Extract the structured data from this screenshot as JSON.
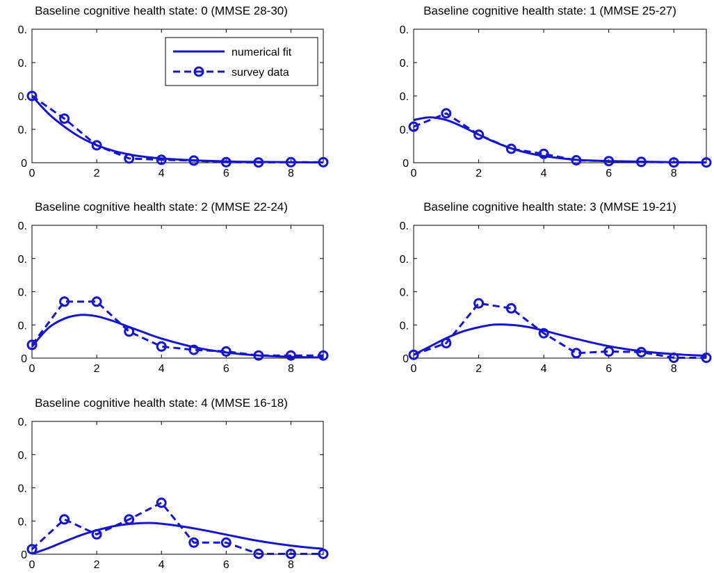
{
  "chart_data": [
    {
      "type": "line",
      "title": "Baseline cognitive health state: 0 (MMSE 28-30)",
      "xlim": [
        0,
        9
      ],
      "ylim": [
        0,
        0.5
      ],
      "xticks": [
        "0",
        "2",
        "4",
        "6",
        "8"
      ],
      "yticks": [
        "0",
        "0.",
        "0.",
        "0.",
        "0."
      ],
      "grid": false,
      "legend": {
        "location": "top-right",
        "entries": [
          "numerical fit",
          "survey data"
        ]
      },
      "series": [
        {
          "name": "numerical fit",
          "style": "solid",
          "x": [
            0,
            0.5,
            1,
            1.5,
            2,
            2.5,
            3,
            3.5,
            4,
            5,
            6,
            7,
            8,
            9
          ],
          "y": [
            0.25,
            0.185,
            0.135,
            0.095,
            0.066,
            0.045,
            0.031,
            0.022,
            0.016,
            0.009,
            0.005,
            0.003,
            0.002,
            0.001
          ]
        },
        {
          "name": "survey data",
          "style": "dashed-circle",
          "x": [
            0,
            1,
            2,
            3,
            4,
            5,
            6,
            7,
            8,
            9
          ],
          "y": [
            0.25,
            0.165,
            0.065,
            0.016,
            0.011,
            0.008,
            0.002,
            0.001,
            0.002,
            0.002
          ]
        }
      ]
    },
    {
      "type": "line",
      "title": "Baseline cognitive health state: 1 (MMSE 25-27)",
      "xlim": [
        0,
        9
      ],
      "ylim": [
        0,
        0.5
      ],
      "xticks": [
        "0",
        "2",
        "4",
        "6",
        "8"
      ],
      "yticks": [
        "0",
        "0.",
        "0.",
        "0.",
        "0."
      ],
      "grid": false,
      "series": [
        {
          "name": "numerical fit",
          "style": "solid",
          "x": [
            0,
            0.5,
            1,
            1.5,
            2,
            2.5,
            3,
            3.5,
            4,
            5,
            6,
            7,
            8,
            9
          ],
          "y": [
            0.16,
            0.17,
            0.16,
            0.135,
            0.105,
            0.077,
            0.054,
            0.037,
            0.025,
            0.011,
            0.006,
            0.004,
            0.002,
            0.001
          ]
        },
        {
          "name": "survey data",
          "style": "dashed-circle",
          "x": [
            0,
            1,
            2,
            3,
            4,
            5,
            6,
            7,
            8,
            9
          ],
          "y": [
            0.135,
            0.185,
            0.105,
            0.052,
            0.033,
            0.009,
            0.006,
            0.003,
            0.001,
            0.001
          ]
        }
      ]
    },
    {
      "type": "line",
      "title": "Baseline cognitive health state: 2 (MMSE 22-24)",
      "xlim": [
        0,
        9
      ],
      "ylim": [
        0,
        0.4
      ],
      "xticks": [
        "0",
        "2",
        "4",
        "6",
        "8"
      ],
      "yticks": [
        "0",
        "0.",
        "0.",
        "0.",
        "0."
      ],
      "grid": false,
      "series": [
        {
          "name": "numerical fit",
          "style": "solid",
          "x": [
            0,
            0.5,
            1,
            1.5,
            2,
            2.5,
            3,
            3.5,
            4,
            5,
            6,
            7,
            8,
            9
          ],
          "y": [
            0.035,
            0.09,
            0.119,
            0.13,
            0.126,
            0.112,
            0.094,
            0.076,
            0.059,
            0.033,
            0.017,
            0.008,
            0.004,
            0.002
          ]
        },
        {
          "name": "survey data",
          "style": "dashed-circle",
          "x": [
            0,
            1,
            2,
            3,
            4,
            5,
            6,
            7,
            8,
            9
          ],
          "y": [
            0.04,
            0.17,
            0.17,
            0.08,
            0.035,
            0.025,
            0.02,
            0.008,
            0.008,
            0.008
          ]
        }
      ]
    },
    {
      "type": "line",
      "title": "Baseline cognitive health state: 3 (MMSE 19-21)",
      "xlim": [
        0,
        9
      ],
      "ylim": [
        0,
        0.4
      ],
      "xticks": [
        "0",
        "2",
        "4",
        "6",
        "8"
      ],
      "yticks": [
        "0",
        "0.",
        "0.",
        "0.",
        "0."
      ],
      "grid": false,
      "series": [
        {
          "name": "numerical fit",
          "style": "solid",
          "x": [
            0,
            0.5,
            1,
            1.5,
            2,
            2.5,
            3,
            3.5,
            4,
            5,
            6,
            7,
            8,
            9
          ],
          "y": [
            0.01,
            0.035,
            0.06,
            0.08,
            0.093,
            0.101,
            0.1,
            0.094,
            0.083,
            0.058,
            0.036,
            0.021,
            0.012,
            0.007
          ]
        },
        {
          "name": "survey data",
          "style": "dashed-circle",
          "x": [
            0,
            1,
            2,
            3,
            4,
            5,
            6,
            7,
            8,
            9
          ],
          "y": [
            0.01,
            0.045,
            0.165,
            0.15,
            0.075,
            0.015,
            0.02,
            0.018,
            0.001,
            0.001
          ]
        }
      ]
    },
    {
      "type": "line",
      "title": "Baseline cognitive health state: 4 (MMSE 16-18)",
      "xlim": [
        0,
        9
      ],
      "ylim": [
        0,
        0.4
      ],
      "xticks": [
        "0",
        "2",
        "4",
        "6",
        "8"
      ],
      "yticks": [
        "0",
        "0.",
        "0.",
        "0.",
        "0."
      ],
      "grid": false,
      "series": [
        {
          "name": "numerical fit",
          "style": "solid",
          "x": [
            0,
            0.5,
            1,
            1.5,
            2,
            2.5,
            3,
            3.5,
            4,
            5,
            6,
            7,
            8,
            9
          ],
          "y": [
            0.001,
            0.018,
            0.038,
            0.057,
            0.072,
            0.084,
            0.091,
            0.094,
            0.092,
            0.078,
            0.059,
            0.04,
            0.026,
            0.016
          ]
        },
        {
          "name": "survey data",
          "style": "dashed-circle",
          "x": [
            0,
            1,
            2,
            3,
            4,
            5,
            6,
            7,
            8,
            9
          ],
          "y": [
            0.015,
            0.105,
            0.06,
            0.105,
            0.155,
            0.035,
            0.035,
            0.001,
            0.001,
            0.001
          ]
        }
      ]
    }
  ],
  "colors": {
    "series": "#1414d2",
    "axes": "#000000",
    "background": "#ffffff"
  }
}
